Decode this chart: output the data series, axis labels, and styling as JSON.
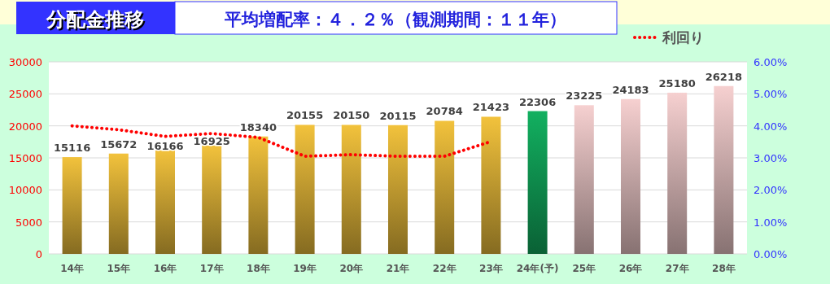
{
  "chart_data": {
    "type": "bar",
    "title": "分配金推移",
    "subtitle": "平均増配率：４．２％（観測期間：１１年）",
    "categories": [
      "14年",
      "15年",
      "16年",
      "17年",
      "18年",
      "19年",
      "20年",
      "21年",
      "22年",
      "23年",
      "24年(予)",
      "25年",
      "26年",
      "27年",
      "28年"
    ],
    "series": [
      {
        "type": "bar",
        "colors": [
          "#f2c23c",
          "#f2c23c",
          "#f2c23c",
          "#f2c23c",
          "#f2c23c",
          "#f2c23c",
          "#f2c23c",
          "#f2c23c",
          "#f2c23c",
          "#f2c23c",
          "#12b060",
          "#f6d0d0",
          "#f6d0d0",
          "#f6d0d0",
          "#f6d0d0"
        ],
        "values": [
          15116,
          15672,
          16166,
          16925,
          18340,
          20155,
          20150,
          20115,
          20784,
          21423,
          22306,
          23225,
          24183,
          25180,
          26218
        ],
        "value_labels": [
          "15116",
          "15672",
          "16166",
          "16925",
          "18340",
          "20155",
          "20150",
          "20115",
          "20784",
          "21423",
          "22306",
          "23225",
          "24183",
          "25180",
          "26218"
        ]
      },
      {
        "type": "line",
        "name": "利回り",
        "axis": "y2",
        "color": "#ff0000",
        "line_style": "dotted",
        "marker": "none",
        "values": [
          4.0,
          3.88,
          3.67,
          3.76,
          3.64,
          3.05,
          3.1,
          3.05,
          3.05,
          3.51,
          null,
          null,
          null,
          null,
          null
        ]
      }
    ],
    "ylim": [
      0,
      30000
    ],
    "yticks": [
      0,
      5000,
      10000,
      15000,
      20000,
      25000,
      30000
    ],
    "y2lim": [
      0,
      6
    ],
    "y2ticks": [
      {
        "value": 0,
        "label": "0.00%"
      },
      {
        "value": 1,
        "label": "1.00%"
      },
      {
        "value": 2,
        "label": "2.00%"
      },
      {
        "value": 3,
        "label": "3.00%"
      },
      {
        "value": 4,
        "label": "4.00%"
      },
      {
        "value": 5,
        "label": "5.00%"
      },
      {
        "value": 6,
        "label": "6.00%"
      }
    ],
    "grid": "y",
    "legend": "top right"
  }
}
